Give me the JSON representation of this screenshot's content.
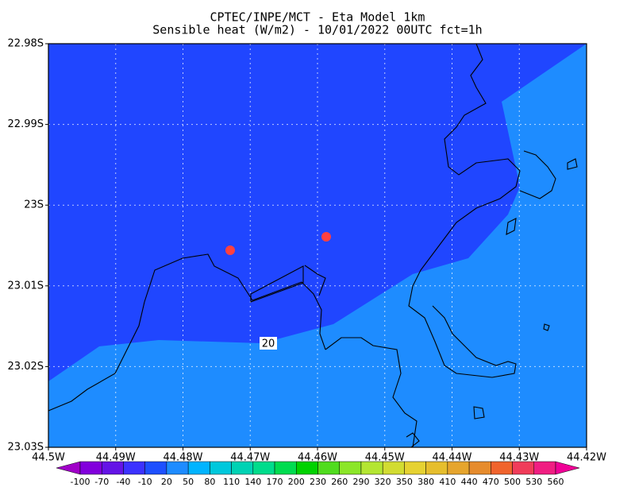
{
  "chart_data": {
    "type": "map",
    "title": "CPTEC/INPE/MCT -  Eta Model 1km",
    "subtitle": "Sensible heat (W/m2) - 10/01/2022 00UTC fct=1h",
    "xlim": [
      44.5,
      44.42
    ],
    "ylim": [
      23.03,
      22.98
    ],
    "xticks": [
      {
        "value": 44.5,
        "label": "44.5W"
      },
      {
        "value": 44.49,
        "label": "44.49W"
      },
      {
        "value": 44.48,
        "label": "44.48W"
      },
      {
        "value": 44.47,
        "label": "44.47W"
      },
      {
        "value": 44.46,
        "label": "44.46W"
      },
      {
        "value": 44.45,
        "label": "44.45W"
      },
      {
        "value": 44.44,
        "label": "44.44W"
      },
      {
        "value": 44.43,
        "label": "44.43W"
      },
      {
        "value": 44.42,
        "label": "44.42W"
      }
    ],
    "yticks": [
      {
        "value": 22.98,
        "label": "22.98S"
      },
      {
        "value": 22.99,
        "label": "22.99S"
      },
      {
        "value": 23,
        "label": "23S"
      },
      {
        "value": 23.01,
        "label": "23.01S"
      },
      {
        "value": 23.02,
        "label": "23.02S"
      },
      {
        "value": 23.03,
        "label": "23.03S"
      }
    ],
    "grid": true,
    "contour_label": "20",
    "colorbar": {
      "levels": [
        -100,
        -70,
        -40,
        -10,
        20,
        50,
        80,
        110,
        140,
        170,
        200,
        230,
        260,
        290,
        320,
        350,
        380,
        410,
        440,
        470,
        500,
        530,
        560
      ],
      "colors": [
        "#a000c8",
        "#8200dc",
        "#6414e6",
        "#3c32ff",
        "#1e50ff",
        "#1e8cff",
        "#00b4ff",
        "#00c8dc",
        "#00d2b4",
        "#00dc8c",
        "#00dc50",
        "#00d200",
        "#50dc1e",
        "#8ce628",
        "#b4e632",
        "#d2dc32",
        "#e6d232",
        "#e6be2d",
        "#e6a52d",
        "#e68c2d",
        "#f0642d",
        "#f03c5a",
        "#f01e82",
        "#f00096"
      ]
    }
  }
}
